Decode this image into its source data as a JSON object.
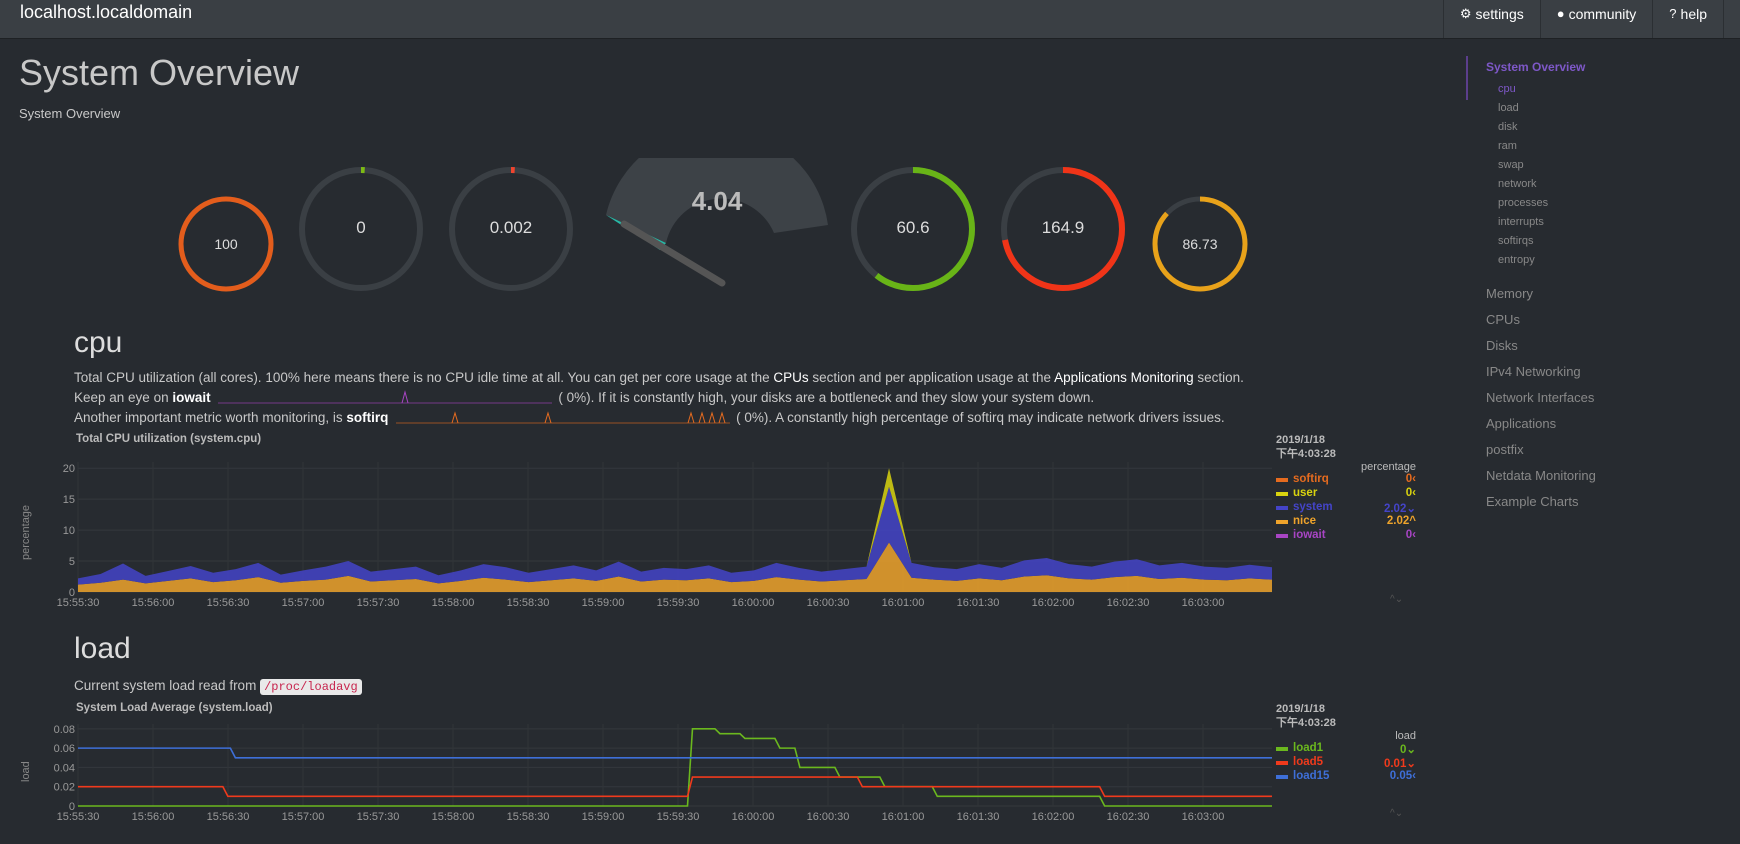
{
  "header": {
    "brand": "localhost.localdomain",
    "buttons": [
      {
        "icon": "gear-icon",
        "glyph": "⚙",
        "label": "settings"
      },
      {
        "icon": "github-icon",
        "glyph": "●",
        "label": "community"
      },
      {
        "icon": "help-icon",
        "glyph": "?",
        "label": "help"
      }
    ]
  },
  "page": {
    "title": "System Overview",
    "subtitle": "System Overview"
  },
  "sidebar": {
    "active": "System Overview",
    "subitems": [
      "cpu",
      "load",
      "disk",
      "ram",
      "swap",
      "network",
      "processes",
      "interrupts",
      "softirqs",
      "entropy"
    ],
    "items": [
      "Memory",
      "CPUs",
      "Disks",
      "IPv4 Networking",
      "Network Interfaces",
      "Applications",
      "postfix",
      "Netdata Monitoring",
      "Example Charts"
    ]
  },
  "gauges": [
    {
      "value": "100",
      "level": 1.0,
      "color": "#e35d1c"
    },
    {
      "value": "0",
      "level": 0.0,
      "color": "#7dbb14"
    },
    {
      "value": "0.002",
      "level": 0.01,
      "color": "#f0442e"
    },
    {
      "value": "4.04",
      "level": 0.05,
      "color": "#27b8a6"
    },
    {
      "value": "60.6",
      "level": 0.606,
      "color": "#68b417"
    },
    {
      "value": "164.9",
      "level": 0.72,
      "color": "#f03418"
    },
    {
      "value": "86.73",
      "level": 0.8673,
      "color": "#e8a21a"
    }
  ],
  "cpu": {
    "title": "cpu",
    "line1_a": "Total CPU utilization (all cores). 100% here means there is no CPU idle time at all. You can get per core usage at the ",
    "line1_link1": "CPUs",
    "line1_b": " section and per application usage at the ",
    "line1_link2": "Applications Monitoring",
    "line1_c": " section.",
    "line2_a": "Keep an eye on ",
    "line2_b": "iowait",
    "line2_pct": "(            0%). If it is constantly high, your disks are a bottleneck and they slow your system down.",
    "line3_a": "Another important metric worth monitoring, is ",
    "line3_b": "softirq",
    "line3_pct": "(            0%). A constantly high percentage of softirq may indicate network drivers issues."
  },
  "cpu_chart": {
    "title": "Total CPU utilization (system.cpu)",
    "ylabel": "percentage",
    "date": "2019/1/18",
    "time": "下午4:03:28",
    "unit": "percentage",
    "legend": [
      {
        "name": "softirq",
        "value": "0",
        "arrow": "‹",
        "color": "#e56b1f"
      },
      {
        "name": "user",
        "value": "0",
        "arrow": "‹",
        "color": "#d9d30f"
      },
      {
        "name": "system",
        "value": "2.02",
        "arrow": "⌄",
        "color": "#4444c8"
      },
      {
        "name": "nice",
        "value": "2.02",
        "arrow": "^",
        "color": "#eea32b"
      },
      {
        "name": "iowait",
        "value": "0",
        "arrow": "‹",
        "color": "#a845c4"
      }
    ]
  },
  "load": {
    "title": "load",
    "desc": "Current system load read from ",
    "code": "/proc/loadavg"
  },
  "load_chart": {
    "title": "System Load Average (system.load)",
    "ylabel": "load",
    "date": "2019/1/18",
    "time": "下午4:03:28",
    "unit": "load",
    "legend": [
      {
        "name": "load1",
        "value": "0",
        "arrow": "⌄",
        "color": "#6bb81e"
      },
      {
        "name": "load5",
        "value": "0.01",
        "arrow": "⌄",
        "color": "#f03a1c"
      },
      {
        "name": "load15",
        "value": "0.05",
        "arrow": "‹",
        "color": "#3e6fd8"
      }
    ]
  },
  "chart_data": [
    {
      "type": "area",
      "title": "Total CPU utilization (system.cpu)",
      "ylabel": "percentage",
      "xlabel": "",
      "x_ticks": [
        "15:55:30",
        "15:56:00",
        "15:56:30",
        "15:57:00",
        "15:57:30",
        "15:58:00",
        "15:58:30",
        "15:59:00",
        "15:59:30",
        "16:00:00",
        "16:00:30",
        "16:01:00",
        "16:01:30",
        "16:02:00",
        "16:02:30",
        "16:03:00"
      ],
      "y_ticks": [
        0,
        5,
        10,
        15,
        20
      ],
      "ylim": [
        0,
        21
      ],
      "x_range_seconds": [
        0,
        478
      ],
      "grid": true,
      "legend_position": "right",
      "series": [
        {
          "name": "nice",
          "color": "#eea32b",
          "values": [
            1.2,
            1.5,
            2.0,
            1.4,
            1.8,
            2.2,
            1.6,
            1.9,
            2.4,
            1.5,
            1.8,
            2.0,
            2.6,
            1.7,
            1.9,
            2.1,
            1.4,
            1.8,
            2.3,
            2.0,
            1.6,
            1.9,
            2.2,
            1.8,
            2.5,
            1.7,
            2.0,
            1.9,
            2.2,
            1.6,
            1.8,
            2.4,
            2.0,
            1.7,
            1.9,
            2.1,
            8.0,
            2.3,
            2.0,
            1.8,
            2.2,
            1.9,
            2.5,
            2.7,
            2.2,
            2.0,
            2.4,
            2.6,
            2.1,
            2.3,
            2.0,
            1.9,
            2.2,
            2.0
          ]
        },
        {
          "name": "system",
          "color": "#4444c8",
          "values": [
            1.0,
            1.4,
            2.6,
            1.2,
            1.6,
            2.0,
            1.5,
            1.8,
            2.3,
            1.3,
            1.7,
            2.1,
            2.4,
            1.6,
            1.8,
            2.0,
            1.3,
            1.7,
            2.2,
            2.0,
            1.5,
            1.8,
            2.1,
            1.7,
            2.4,
            1.6,
            1.9,
            1.8,
            2.1,
            1.5,
            1.7,
            2.3,
            1.9,
            1.6,
            1.8,
            2.0,
            9.0,
            2.4,
            2.0,
            1.9,
            2.3,
            2.0,
            2.6,
            2.8,
            2.3,
            2.1,
            2.5,
            2.7,
            2.2,
            2.4,
            2.1,
            2.0,
            2.2,
            2.0
          ]
        },
        {
          "name": "user",
          "color": "#d9d30f",
          "values": [
            0,
            0,
            0,
            0,
            0,
            0,
            0,
            0,
            0,
            0,
            0,
            0,
            0,
            0,
            0,
            0,
            0,
            0,
            0,
            0,
            0,
            0,
            0,
            0,
            0,
            0,
            0,
            0,
            0,
            0,
            0,
            0,
            0,
            0,
            0,
            0,
            3.0,
            0,
            0,
            0,
            0,
            0,
            0,
            0,
            0,
            0,
            0,
            0,
            0,
            0,
            0,
            0,
            0,
            0
          ]
        },
        {
          "name": "softirq",
          "color": "#e56b1f",
          "values": [
            0,
            0,
            0,
            0,
            0,
            0,
            0,
            0,
            0,
            0,
            0,
            0,
            0,
            0,
            0,
            0,
            0,
            0,
            0,
            0,
            0,
            0,
            0,
            0,
            0,
            0,
            0,
            0,
            0,
            0,
            0,
            0,
            0,
            0,
            0,
            0,
            0,
            0,
            0,
            0,
            0,
            0,
            0,
            0,
            0,
            0,
            0,
            0,
            0,
            0,
            0,
            0,
            0,
            0
          ]
        },
        {
          "name": "iowait",
          "color": "#a845c4",
          "values": [
            0,
            0,
            0,
            0,
            0,
            0,
            0,
            0,
            0,
            0,
            0,
            0,
            0,
            0,
            0,
            0,
            0,
            0,
            0,
            0,
            0,
            0,
            0,
            0,
            0,
            0,
            0,
            0,
            0,
            0,
            0,
            0,
            0,
            0,
            0,
            0,
            0,
            0,
            0,
            0,
            0,
            0,
            0,
            0,
            0,
            0,
            0,
            0,
            0,
            0,
            0,
            0,
            0,
            0
          ]
        }
      ]
    },
    {
      "type": "line",
      "title": "System Load Average (system.load)",
      "ylabel": "load",
      "xlabel": "",
      "x_ticks": [
        "15:55:30",
        "15:56:00",
        "15:56:30",
        "15:57:00",
        "15:57:30",
        "15:58:00",
        "15:58:30",
        "15:59:00",
        "15:59:30",
        "16:00:00",
        "16:00:30",
        "16:01:00",
        "16:01:30",
        "16:02:00",
        "16:02:30",
        "16:03:00"
      ],
      "y_ticks": [
        0,
        0.02,
        0.04,
        0.06,
        0.08
      ],
      "ylim": [
        0,
        0.085
      ],
      "grid": true,
      "legend_position": "right",
      "series": [
        {
          "name": "load1",
          "color": "#6bb81e",
          "steps": [
            [
              0,
              0
            ],
            [
              244,
              0
            ],
            [
              246,
              0.08
            ],
            [
              255,
              0.08
            ],
            [
              257,
              0.075
            ],
            [
              265,
              0.075
            ],
            [
              267,
              0.07
            ],
            [
              279,
              0.07
            ],
            [
              281,
              0.06
            ],
            [
              287,
              0.06
            ],
            [
              289,
              0.04
            ],
            [
              303,
              0.04
            ],
            [
              305,
              0.03
            ],
            [
              321,
              0.03
            ],
            [
              323,
              0.02
            ],
            [
              342,
              0.02
            ],
            [
              344,
              0.01
            ],
            [
              409,
              0.01
            ],
            [
              411,
              0
            ],
            [
              478,
              0
            ]
          ]
        },
        {
          "name": "load5",
          "color": "#f03a1c",
          "steps": [
            [
              0,
              0.02
            ],
            [
              58,
              0.02
            ],
            [
              60,
              0.01
            ],
            [
              244,
              0.01
            ],
            [
              246,
              0.03
            ],
            [
              312,
              0.03
            ],
            [
              314,
              0.02
            ],
            [
              409,
              0.02
            ],
            [
              411,
              0.01
            ],
            [
              478,
              0.01
            ]
          ]
        },
        {
          "name": "load15",
          "color": "#3e6fd8",
          "steps": [
            [
              0,
              0.06
            ],
            [
              61,
              0.06
            ],
            [
              63,
              0.05
            ],
            [
              478,
              0.05
            ]
          ]
        }
      ]
    }
  ]
}
